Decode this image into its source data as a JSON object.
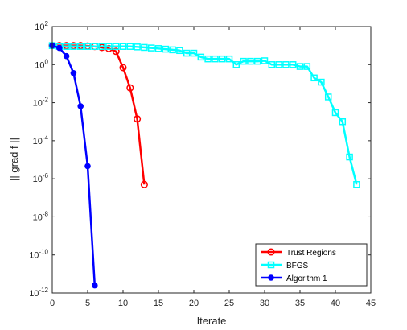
{
  "chart_data": {
    "type": "line",
    "xlabel": "Iterate",
    "ylabel": "|| grad f ||",
    "xlim": [
      0,
      45
    ],
    "ylim_log10": [
      -12,
      2
    ],
    "y_scale": "log",
    "x_ticks": [
      0,
      5,
      10,
      15,
      20,
      25,
      30,
      35,
      40,
      45
    ],
    "y_tick_exponents": [
      -12,
      -10,
      -8,
      -6,
      -4,
      -2,
      0,
      2
    ],
    "y_tick_base": "10",
    "legend_position": "bottom-right",
    "series": [
      {
        "name": "Trust Regions",
        "color": "#ff0000",
        "marker": "circle-open",
        "x": [
          0,
          1,
          2,
          3,
          4,
          5,
          6,
          7,
          8,
          9,
          10,
          11,
          12,
          13
        ],
        "y": [
          10,
          10,
          10,
          10,
          10,
          9.5,
          9,
          8,
          7,
          5,
          0.7,
          0.06,
          0.0014,
          5e-07
        ]
      },
      {
        "name": "BFGS",
        "color": "#00ffff",
        "marker": "square-open",
        "x": [
          0,
          1,
          2,
          3,
          4,
          5,
          6,
          7,
          8,
          9,
          10,
          11,
          12,
          13,
          14,
          15,
          16,
          17,
          18,
          19,
          20,
          21,
          22,
          23,
          24,
          25,
          26,
          27,
          28,
          29,
          30,
          31,
          32,
          33,
          34,
          35,
          36,
          37,
          38,
          39,
          40,
          41,
          42,
          43
        ],
        "y": [
          10,
          9,
          9,
          9,
          9,
          9,
          9,
          9,
          9,
          9,
          9,
          9,
          8.5,
          8,
          7.5,
          7,
          6.5,
          6,
          5.5,
          4,
          4,
          2.5,
          2,
          2,
          2,
          2,
          1,
          1.5,
          1.5,
          1.5,
          1.6,
          1,
          1,
          1,
          1,
          0.8,
          0.8,
          0.2,
          0.12,
          0.02,
          0.003,
          0.001,
          1.4e-05,
          5e-07
        ]
      },
      {
        "name": "Algorithm 1",
        "color": "#0000ff",
        "marker": "circle-filled",
        "x": [
          0,
          1,
          2,
          3,
          4,
          5,
          6
        ],
        "y": [
          10,
          7.5,
          2.8,
          0.36,
          0.0065,
          4.6e-06,
          2.5e-12
        ]
      }
    ]
  }
}
